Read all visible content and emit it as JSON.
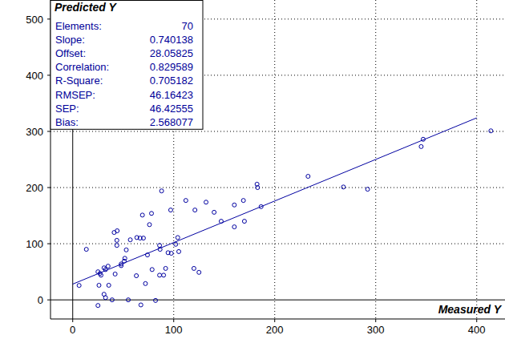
{
  "chart_data": {
    "type": "scatter",
    "x_label": "Measured Y",
    "y_label": "Predicted Y",
    "color": "#0000a0",
    "marker": "circle",
    "grid": true,
    "xlim": [
      -22,
      428
    ],
    "ylim": [
      -34,
      534
    ],
    "xticks": [
      0,
      100,
      200,
      300,
      400
    ],
    "yticks": [
      0,
      100,
      200,
      300,
      400,
      500
    ],
    "x": [
      6.3,
      13.5,
      25,
      26,
      25,
      27,
      28,
      31,
      32.5,
      35,
      31,
      32.5,
      35.7,
      39,
      41,
      44,
      43.7,
      43.7,
      42,
      48,
      48,
      51,
      51.6,
      53,
      55,
      57,
      63.5,
      63,
      67.5,
      66.7,
      69,
      70,
      72,
      74,
      76,
      78,
      78.6,
      82,
      86,
      86,
      86.5,
      88,
      90,
      92,
      94.4,
      97,
      97.6,
      102,
      104,
      105,
      112,
      120,
      121,
      125,
      132,
      140,
      147,
      160,
      160,
      169,
      170,
      182.5,
      183,
      186.5,
      233,
      268,
      292,
      345,
      347,
      414
    ],
    "values": [
      25.7,
      90,
      -10,
      26,
      50,
      47,
      44,
      57,
      54,
      60,
      10,
      4,
      26,
      0,
      120,
      123,
      106,
      97,
      46,
      61,
      64,
      69,
      74,
      89,
      0,
      107,
      111,
      43,
      -9,
      110,
      151,
      110,
      29,
      80,
      134,
      154,
      54,
      -1,
      44,
      97,
      90,
      194,
      44,
      56,
      84,
      160,
      83,
      99,
      111,
      86,
      177,
      56,
      160,
      49,
      174,
      156,
      140,
      169,
      130,
      177,
      140,
      206,
      200,
      166,
      220,
      201,
      197,
      273,
      286,
      301
    ],
    "stats": [
      {
        "label": "Elements:",
        "value": 70
      },
      {
        "label": "Slope:",
        "value": 0.740138
      },
      {
        "label": "Offset:",
        "value": 28.05825
      },
      {
        "label": "Correlation:",
        "value": 0.829589
      },
      {
        "label": "R-Square:",
        "value": 0.705182
      },
      {
        "label": "RMSEP:",
        "value": 46.16423
      },
      {
        "label": "SEP:",
        "value": 46.42555
      },
      {
        "label": "Bias:",
        "value": 2.568077
      }
    ]
  }
}
